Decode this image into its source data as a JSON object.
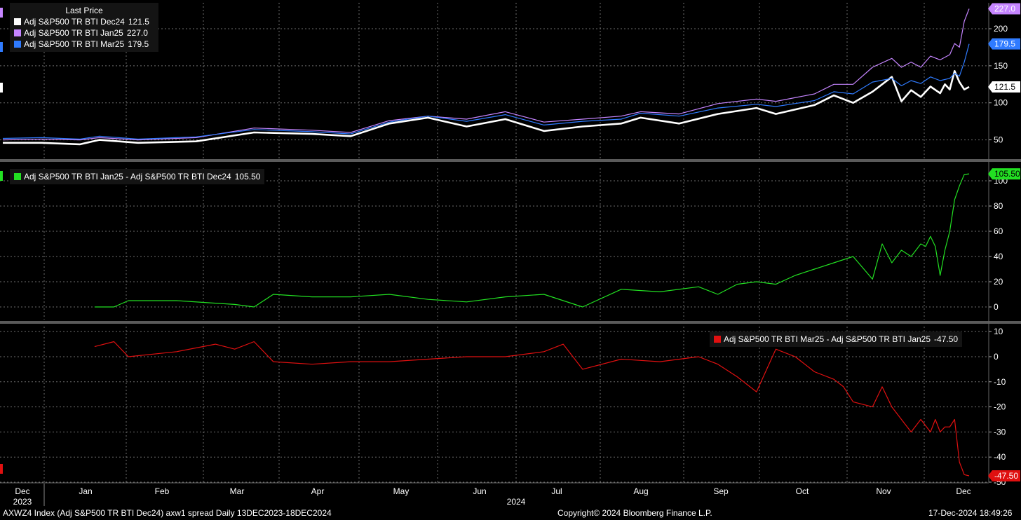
{
  "colors": {
    "white": "#ffffff",
    "purple": "#c585ff",
    "blue": "#2f7bff",
    "green": "#22e022",
    "red": "#e01010",
    "grid": "#8a8a8a",
    "divider": "#5a5a5a"
  },
  "chart_data": [
    {
      "type": "line",
      "title": "Last Price",
      "ylim": [
        25,
        235
      ],
      "yticks": [
        50,
        100,
        150,
        200
      ],
      "grid": true,
      "legend_position": "top-left",
      "series": [
        {
          "name": "Adj S&P500 TR BTI Dec24",
          "last_label": "121.5",
          "color": "white",
          "x": [
            0,
            0.04,
            0.08,
            0.1,
            0.14,
            0.2,
            0.26,
            0.32,
            0.36,
            0.4,
            0.44,
            0.48,
            0.52,
            0.56,
            0.6,
            0.64,
            0.66,
            0.7,
            0.74,
            0.78,
            0.8,
            0.84,
            0.86,
            0.88,
            0.9,
            0.92,
            0.93,
            0.94,
            0.95,
            0.96,
            0.97,
            0.975,
            0.98,
            0.985,
            0.99,
            0.995,
            1.0
          ],
          "values": [
            46,
            46,
            44,
            50,
            46,
            48,
            60,
            58,
            55,
            72,
            80,
            68,
            78,
            62,
            68,
            72,
            80,
            72,
            85,
            93,
            85,
            97,
            110,
            100,
            115,
            135,
            102,
            117,
            108,
            122,
            113,
            125,
            118,
            143,
            128,
            118,
            121.5
          ]
        },
        {
          "name": "Adj S&P500 TR BTI Jan25",
          "last_label": "227.0",
          "color": "purple",
          "x": [
            0,
            0.04,
            0.08,
            0.1,
            0.14,
            0.2,
            0.26,
            0.32,
            0.36,
            0.4,
            0.44,
            0.48,
            0.52,
            0.56,
            0.6,
            0.64,
            0.66,
            0.7,
            0.74,
            0.78,
            0.8,
            0.84,
            0.86,
            0.88,
            0.9,
            0.92,
            0.93,
            0.94,
            0.95,
            0.96,
            0.97,
            0.98,
            0.985,
            0.99,
            0.995,
            1.0
          ],
          "values": [
            50,
            51,
            50,
            53,
            50,
            53,
            66,
            63,
            60,
            76,
            82,
            78,
            88,
            74,
            78,
            82,
            88,
            85,
            99,
            105,
            102,
            112,
            125,
            125,
            148,
            160,
            148,
            155,
            148,
            163,
            158,
            165,
            180,
            175,
            210,
            227
          ]
        },
        {
          "name": "Adj S&P500 TR BTI Mar25",
          "last_label": "179.5",
          "color": "blue",
          "x": [
            0,
            0.04,
            0.08,
            0.1,
            0.14,
            0.2,
            0.26,
            0.32,
            0.36,
            0.4,
            0.44,
            0.48,
            0.52,
            0.56,
            0.6,
            0.64,
            0.66,
            0.7,
            0.74,
            0.78,
            0.8,
            0.84,
            0.86,
            0.88,
            0.9,
            0.92,
            0.93,
            0.94,
            0.95,
            0.96,
            0.97,
            0.98,
            0.985,
            0.99,
            0.995,
            1.0
          ],
          "values": [
            52,
            53,
            51,
            55,
            51,
            54,
            64,
            61,
            58,
            74,
            82,
            75,
            84,
            70,
            75,
            78,
            86,
            82,
            93,
            98,
            95,
            103,
            115,
            112,
            128,
            133,
            123,
            130,
            126,
            135,
            130,
            133,
            140,
            136,
            155,
            179.5
          ]
        }
      ]
    },
    {
      "type": "line",
      "ylim": [
        -10,
        110
      ],
      "yticks": [
        0,
        20,
        40,
        60,
        80,
        100
      ],
      "grid": true,
      "legend_position": "top-left",
      "series": [
        {
          "name": "Adj S&P500 TR BTI Jan25 - Adj S&P500 TR BTI Dec24",
          "last_label": "105.50",
          "color": "green",
          "x": [
            0.095,
            0.115,
            0.13,
            0.18,
            0.22,
            0.24,
            0.26,
            0.28,
            0.32,
            0.36,
            0.4,
            0.44,
            0.48,
            0.52,
            0.56,
            0.6,
            0.64,
            0.68,
            0.72,
            0.74,
            0.76,
            0.78,
            0.8,
            0.82,
            0.84,
            0.86,
            0.88,
            0.9,
            0.91,
            0.92,
            0.93,
            0.94,
            0.95,
            0.955,
            0.96,
            0.965,
            0.97,
            0.975,
            0.98,
            0.985,
            0.99,
            0.995,
            1.0
          ],
          "values": [
            0,
            0,
            5,
            5,
            3,
            2,
            0,
            10,
            8,
            8,
            10,
            6,
            4,
            8,
            10,
            0,
            14,
            12,
            16,
            10,
            18,
            20,
            18,
            25,
            30,
            35,
            40,
            22,
            50,
            35,
            45,
            40,
            50,
            48,
            56,
            48,
            25,
            45,
            60,
            85,
            96,
            105,
            105.5
          ]
        }
      ]
    },
    {
      "type": "line",
      "ylim": [
        -50,
        12
      ],
      "yticks": [
        10,
        0,
        -10,
        -20,
        -30,
        -40,
        -50
      ],
      "grid": true,
      "legend_position": "top-right",
      "series": [
        {
          "name": "Adj S&P500 TR BTI Mar25 - Adj S&P500 TR BTI Jan25",
          "last_label": "-47.50",
          "color": "red",
          "x": [
            0.095,
            0.115,
            0.13,
            0.18,
            0.22,
            0.24,
            0.26,
            0.28,
            0.32,
            0.36,
            0.4,
            0.44,
            0.48,
            0.52,
            0.56,
            0.58,
            0.6,
            0.64,
            0.68,
            0.72,
            0.74,
            0.76,
            0.78,
            0.8,
            0.82,
            0.84,
            0.86,
            0.87,
            0.88,
            0.9,
            0.91,
            0.92,
            0.93,
            0.94,
            0.95,
            0.96,
            0.965,
            0.97,
            0.975,
            0.98,
            0.985,
            0.99,
            0.995,
            1.0
          ],
          "values": [
            4,
            6,
            0,
            2,
            5,
            3,
            6,
            -2,
            -3,
            -2,
            -2,
            -1,
            0,
            0,
            2,
            5,
            -5,
            -1,
            -2,
            0,
            -3,
            -8,
            -14,
            3,
            0,
            -6,
            -9,
            -12,
            -18,
            -20,
            -12,
            -20,
            -25,
            -30,
            -25,
            -30,
            -25,
            -30,
            -28,
            -28,
            -25,
            -42,
            -47,
            -47.5
          ]
        }
      ]
    }
  ],
  "x_axis": {
    "months": [
      "Dec",
      "Jan",
      "Feb",
      "Mar",
      "Apr",
      "May",
      "Jun",
      "Jul",
      "Aug",
      "Sep",
      "Oct",
      "Nov",
      "Dec"
    ],
    "years": [
      "2023",
      "2024"
    ]
  },
  "footer": {
    "left": "AXWZ4 Index (Adj S&P500 TR BTI Dec24) axw1 spread  Daily 13DEC2023-18DEC2024",
    "center": "Copyright© 2024 Bloomberg Finance L.P.",
    "right": "17-Dec-2024 18:49:26"
  }
}
